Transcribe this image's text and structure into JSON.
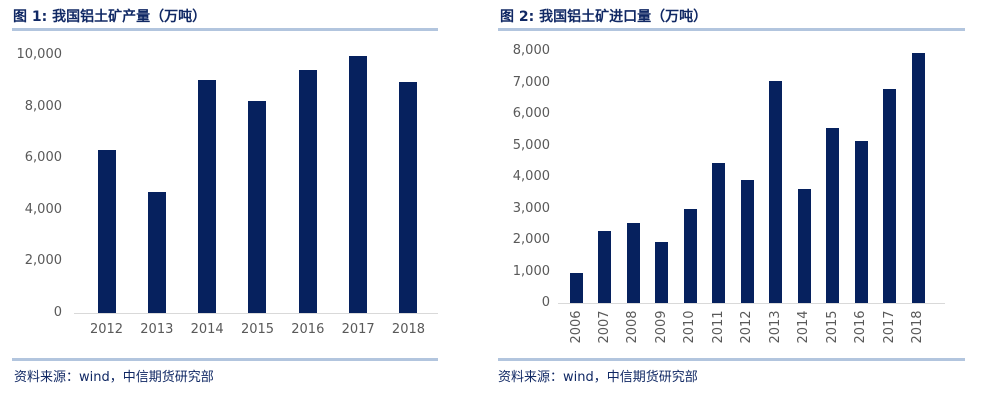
{
  "colors": {
    "bar": "#06215e",
    "heading_text": "#102864",
    "rule": "#b2c5de",
    "tick_label": "#595959",
    "axis_line": "#d9d9d9",
    "background": "#ffffff"
  },
  "chart_data": [
    {
      "type": "bar",
      "title": "图 1: 我国铝土矿产量（万吨）",
      "source": "资料来源：wind，中信期货研究部",
      "categories": [
        "2012",
        "2013",
        "2014",
        "2015",
        "2016",
        "2017",
        "2018"
      ],
      "values": [
        6300,
        4700,
        9050,
        8200,
        9400,
        9950,
        8950
      ],
      "xlabel": "",
      "ylabel": "",
      "ylim": [
        0,
        10000
      ],
      "ytick_step": 2000,
      "grid": false,
      "legend": "none",
      "x_label_rotation": 0
    },
    {
      "type": "bar",
      "title": "图 2: 我国铝土矿进口量（万吨）",
      "source": "资料来源：wind，中信期货研究部",
      "categories": [
        "2006",
        "2007",
        "2008",
        "2009",
        "2010",
        "2011",
        "2012",
        "2013",
        "2014",
        "2015",
        "2016",
        "2017",
        "2018"
      ],
      "values": [
        950,
        2300,
        2550,
        1950,
        3000,
        4450,
        3900,
        7050,
        3620,
        5550,
        5150,
        6800,
        7950
      ],
      "xlabel": "",
      "ylabel": "",
      "ylim": [
        0,
        8000
      ],
      "ytick_step": 1000,
      "grid": false,
      "legend": "none",
      "x_label_rotation": -90
    }
  ]
}
